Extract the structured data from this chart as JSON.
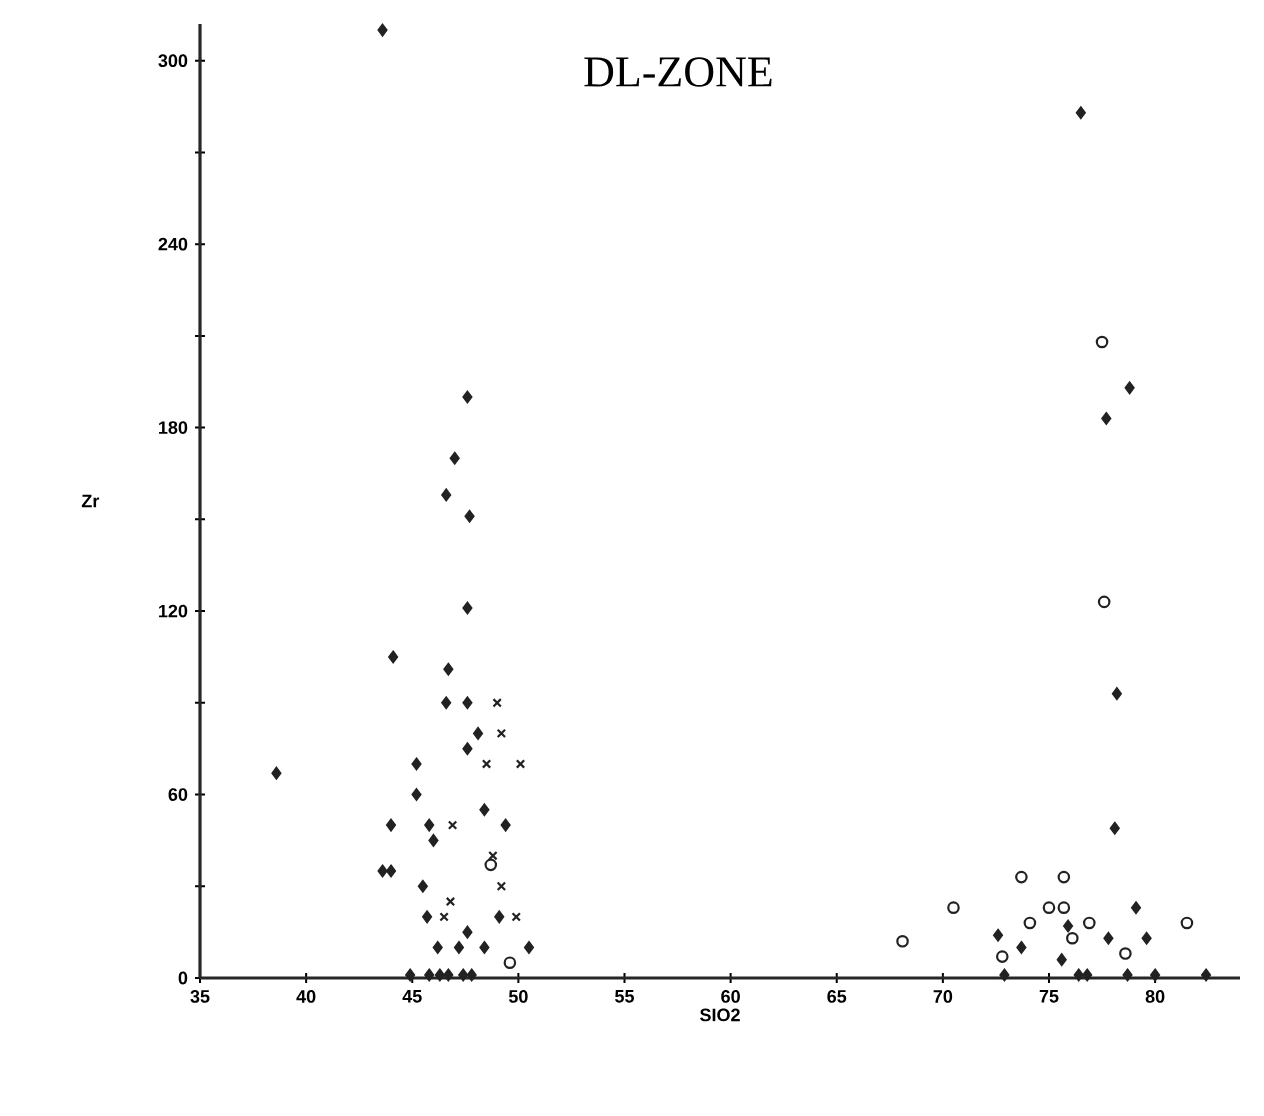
{
  "chart_data": {
    "type": "scatter",
    "title": "DL-ZONE",
    "xlabel": "SIO2",
    "ylabel": "Zr",
    "xlim": [
      35,
      84
    ],
    "ylim": [
      0,
      312
    ],
    "xticks": [
      35,
      40,
      45,
      50,
      55,
      60,
      65,
      70,
      75,
      80
    ],
    "yticks": [
      0,
      {
        "value": 30,
        "label": null
      },
      60,
      {
        "value": 90,
        "label": null
      },
      120,
      {
        "value": 150,
        "label": null
      },
      180,
      {
        "value": 210,
        "label": null
      },
      240,
      {
        "value": 270,
        "label": null
      },
      300
    ],
    "grid": false,
    "series": [
      {
        "marker": "diamond",
        "color": "#222222",
        "x": [
          43.6,
          47.6,
          47.0,
          47.7,
          46.6,
          47.6,
          44.1,
          46.7,
          46.6,
          47.6,
          48.1,
          47.6,
          45.2,
          45.2,
          48.4,
          44.0,
          45.8,
          49.4,
          46.0,
          43.6,
          44.0,
          45.5,
          45.7,
          49.1,
          47.6,
          46.2,
          47.2,
          48.4,
          50.5,
          44.9,
          45.8,
          46.3,
          46.7,
          47.4,
          47.8,
          38.6,
          76.5,
          78.8,
          77.7,
          78.2,
          78.1,
          79.1,
          72.6,
          75.9,
          77.8,
          79.6,
          73.7,
          75.6,
          72.9,
          76.4,
          76.8,
          78.7,
          80.0,
          82.4
        ],
        "values": [
          310,
          190,
          170,
          151,
          158,
          121,
          105,
          101,
          90,
          90,
          80,
          75,
          70,
          60,
          55,
          50,
          50,
          50,
          45,
          35,
          35,
          30,
          20,
          20,
          15,
          10,
          10,
          10,
          10,
          1,
          1,
          1,
          1,
          1,
          1,
          67,
          283,
          193,
          183,
          93,
          49,
          23,
          14,
          17,
          13,
          13,
          10,
          6,
          1,
          1,
          1,
          1,
          1,
          1
        ]
      },
      {
        "marker": "cross",
        "color": "#222222",
        "x": [
          49.0,
          49.2,
          48.5,
          50.1,
          46.9,
          48.8,
          49.2,
          46.8,
          46.5,
          49.9
        ],
        "values": [
          90,
          80,
          70,
          70,
          50,
          40,
          30,
          25,
          20,
          20
        ]
      },
      {
        "marker": "circle",
        "color": "#222222",
        "x": [
          48.7,
          49.6,
          77.5,
          77.6,
          73.7,
          75.7,
          70.5,
          75.0,
          75.7,
          74.1,
          76.9,
          81.5,
          68.1,
          76.1,
          72.8,
          78.6
        ],
        "values": [
          37,
          5,
          208,
          123,
          33,
          33,
          23,
          23,
          23,
          18,
          18,
          18,
          12,
          13,
          7,
          8
        ]
      }
    ]
  }
}
